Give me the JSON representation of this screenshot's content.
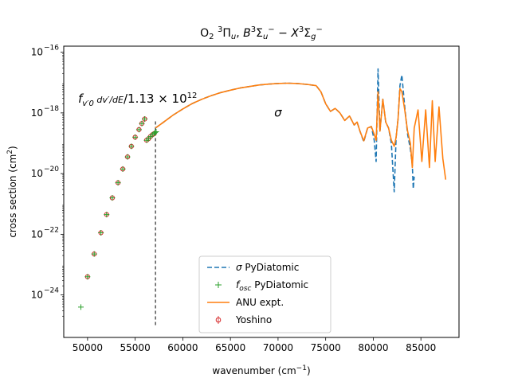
{
  "chart_data": {
    "type": "line",
    "title_base": "O",
    "title_sub": "2",
    "title_rest": "³Πu, B³Σu⁻ − X³Σg⁻",
    "xlabel": "wavenumber (cm⁻¹)",
    "ylabel": "cross section (cm²)",
    "xlim": [
      47500,
      89000
    ],
    "ylim_log10": [
      -25.4,
      -15.8
    ],
    "log_y": true,
    "x_ticks": [
      50000,
      55000,
      60000,
      65000,
      70000,
      75000,
      80000,
      85000
    ],
    "x_tick_labels": [
      "50000",
      "55000",
      "60000",
      "65000",
      "70000",
      "75000",
      "80000",
      "85000"
    ],
    "y_ticks_log10": [
      -24,
      -22,
      -20,
      -18,
      -16
    ],
    "annotations": {
      "sigma_label": "σ",
      "fosc_label": "f_v'0 (dv'/dE) / 1.13 × 10^12"
    },
    "threshold_line_x": 57130,
    "legend": {
      "position": "lower center",
      "entries": [
        {
          "label": "σ PyDiatomic",
          "style": "dashed",
          "color": "#1f77b4"
        },
        {
          "label": "f_osc PyDiatomic",
          "style": "plus",
          "color": "#2ca02c"
        },
        {
          "label": "ANU expt.",
          "style": "solid",
          "color": "#ff7f0e"
        },
        {
          "label": "Yoshino",
          "style": "open-circle-errorbar",
          "color": "#d62728"
        }
      ]
    },
    "series": [
      {
        "name": "σ PyDiatomic",
        "color": "#1f77b4",
        "x": [
          57130,
          58000,
          59000,
          60000,
          61000,
          62000,
          63000,
          64000,
          65000,
          66000,
          67000,
          68000,
          69000,
          70000,
          71000,
          72000,
          73000,
          74000,
          74500,
          75000,
          75500,
          76000,
          76500,
          77000,
          77500,
          78000,
          78300,
          78600,
          79000,
          79400,
          79800,
          80100,
          80300,
          80500,
          80700,
          81000,
          81300,
          81600,
          81900,
          82200,
          82400,
          82600,
          82800,
          83000,
          83300,
          83600,
          83900,
          84100,
          84200,
          84300
        ],
        "y_log10": [
          -18.5,
          -18.3,
          -18.07,
          -17.87,
          -17.69,
          -17.55,
          -17.43,
          -17.33,
          -17.25,
          -17.18,
          -17.13,
          -17.08,
          -17.05,
          -17.03,
          -17.02,
          -17.03,
          -17.06,
          -17.1,
          -17.3,
          -17.7,
          -17.95,
          -17.85,
          -18.0,
          -18.25,
          -18.1,
          -18.4,
          -18.3,
          -18.6,
          -18.95,
          -18.5,
          -18.45,
          -18.9,
          -19.6,
          -16.55,
          -18.6,
          -17.55,
          -18.3,
          -18.5,
          -19.0,
          -20.6,
          -18.8,
          -18.2,
          -17.1,
          -16.75,
          -17.8,
          -18.7,
          -19.2,
          -19.7,
          -20.5,
          -20.1
        ]
      },
      {
        "name": "f_osc PyDiatomic",
        "color": "#2ca02c",
        "x": [
          49300,
          50000,
          50700,
          51400,
          52000,
          52600,
          53200,
          53700,
          54200,
          54600,
          55000,
          55400,
          55700,
          56000,
          56200,
          56400,
          56600,
          56800,
          57000,
          57100,
          57200
        ],
        "y_log10": [
          -24.4,
          -23.4,
          -22.65,
          -21.95,
          -21.35,
          -20.8,
          -20.3,
          -19.85,
          -19.45,
          -19.1,
          -18.8,
          -18.55,
          -18.35,
          -18.2,
          -18.9,
          -18.85,
          -18.78,
          -18.72,
          -18.68,
          -18.65,
          -18.62
        ]
      },
      {
        "name": "ANU expt.",
        "color": "#ff7f0e",
        "x": [
          57130,
          58000,
          59000,
          60000,
          61000,
          62000,
          63000,
          64000,
          65000,
          66000,
          67000,
          68000,
          69000,
          70000,
          71000,
          72000,
          73000,
          74000,
          74500,
          75000,
          75500,
          76000,
          76500,
          77000,
          77500,
          78000,
          78300,
          78600,
          79000,
          79400,
          79800,
          80100,
          80300,
          80500,
          80700,
          81000,
          81300,
          81600,
          81900,
          82200,
          82400,
          82600,
          82800,
          83000,
          83300,
          83600,
          83900,
          84100,
          84300,
          84700,
          85100,
          85500,
          85900,
          86200,
          86500,
          86900,
          87300,
          87600
        ],
        "y_log10": [
          -18.5,
          -18.3,
          -18.07,
          -17.87,
          -17.69,
          -17.55,
          -17.43,
          -17.33,
          -17.25,
          -17.18,
          -17.13,
          -17.08,
          -17.05,
          -17.03,
          -17.02,
          -17.03,
          -17.06,
          -17.1,
          -17.3,
          -17.7,
          -17.95,
          -17.85,
          -18.0,
          -18.25,
          -18.1,
          -18.4,
          -18.3,
          -18.6,
          -18.92,
          -18.5,
          -18.45,
          -18.7,
          -18.9,
          -17.3,
          -18.6,
          -17.55,
          -18.3,
          -18.5,
          -18.9,
          -19.1,
          -18.8,
          -18.2,
          -17.2,
          -17.3,
          -17.9,
          -18.6,
          -19.0,
          -19.8,
          -18.5,
          -17.9,
          -19.6,
          -17.9,
          -19.8,
          -17.6,
          -19.6,
          -17.8,
          -19.5,
          -20.2
        ]
      },
      {
        "name": "Yoshino",
        "color": "#d62728",
        "x": [
          50000,
          50700,
          51400,
          52000,
          52600,
          53200,
          53700,
          54200,
          54600,
          55000,
          55400,
          55700,
          56000,
          56200,
          56400,
          56600,
          56800,
          57000
        ],
        "y_log10": [
          -23.4,
          -22.65,
          -21.95,
          -21.35,
          -20.8,
          -20.3,
          -19.85,
          -19.45,
          -19.1,
          -18.8,
          -18.55,
          -18.35,
          -18.2,
          -18.9,
          -18.85,
          -18.78,
          -18.72,
          -18.68
        ]
      }
    ]
  }
}
